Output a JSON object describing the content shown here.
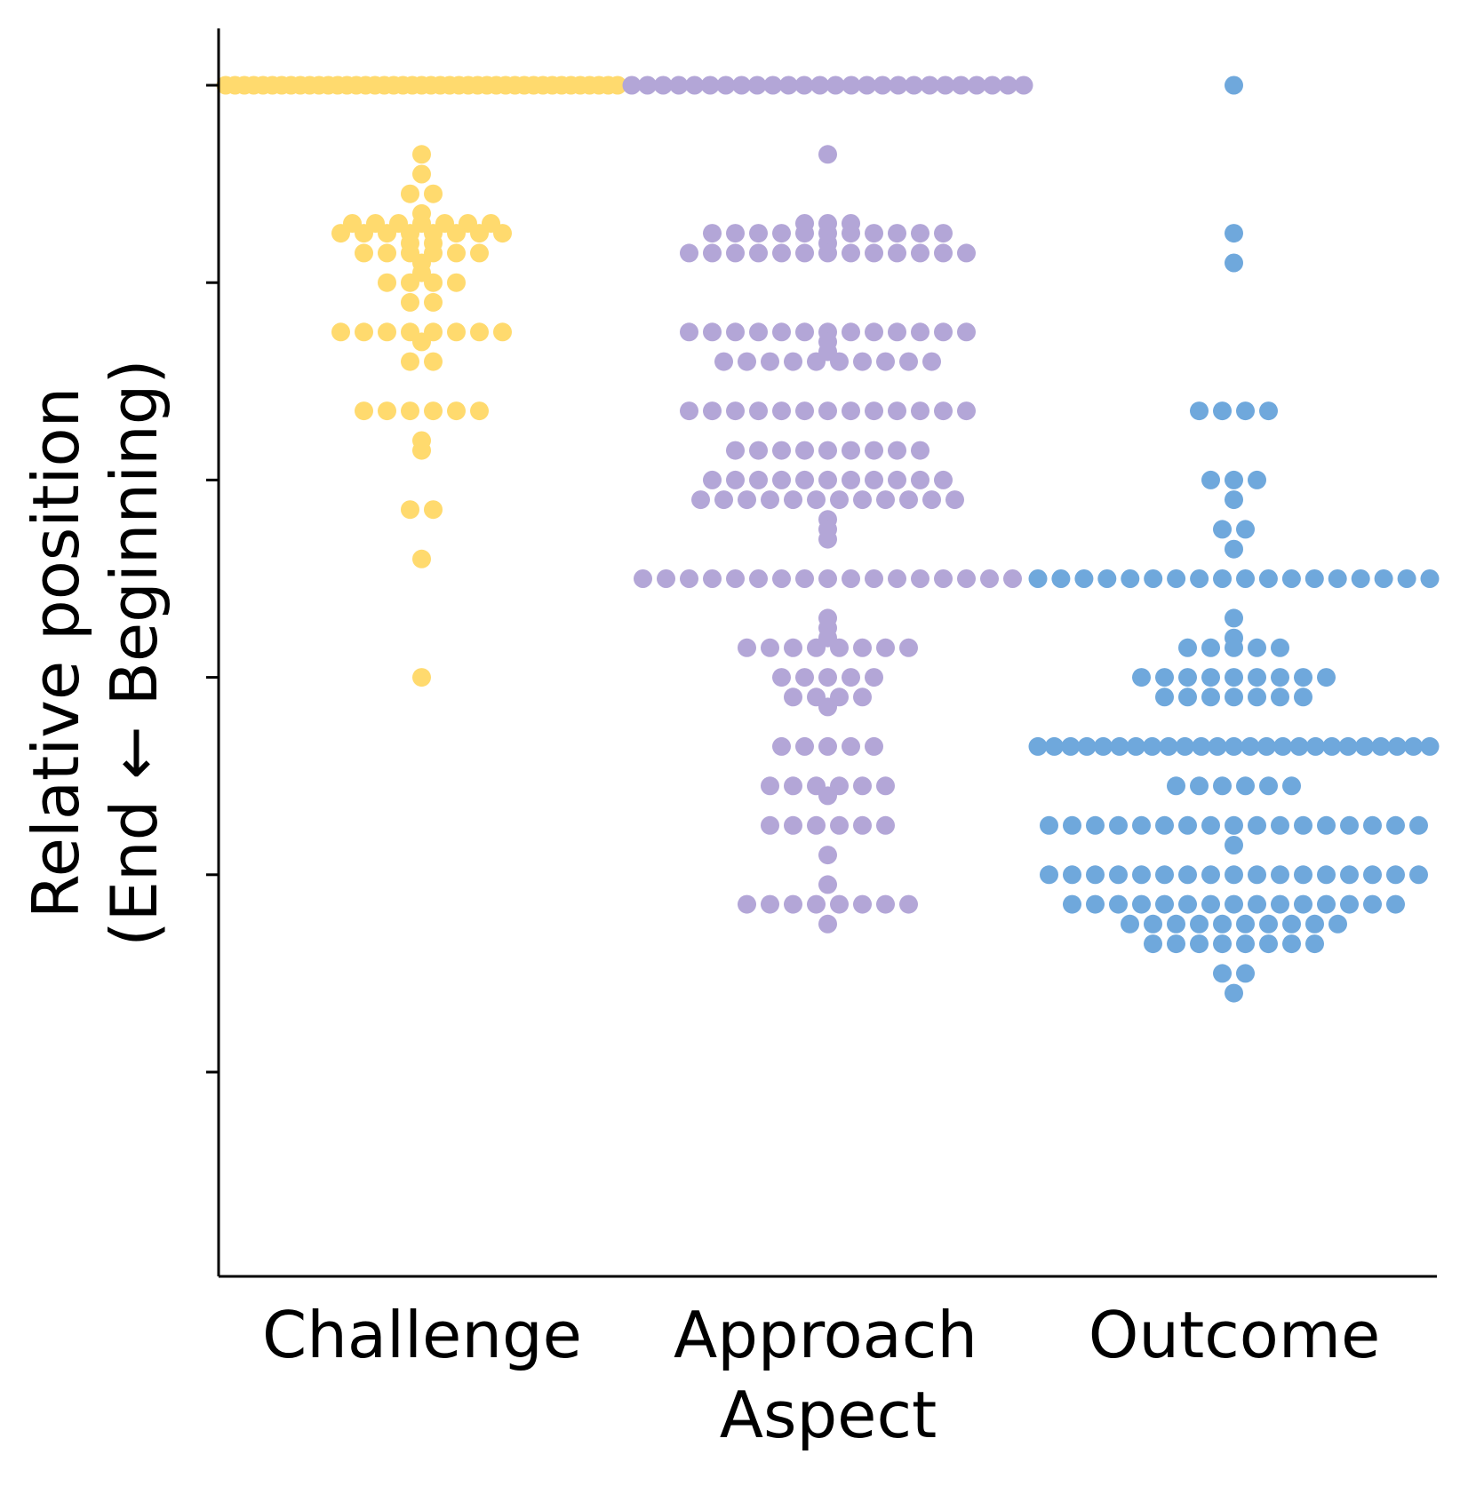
{
  "chart_data": {
    "type": "scatter",
    "subtype": "swarm",
    "xlabel": "Aspect",
    "ylabel_line1": "Relative position",
    "ylabel_line2": "(End ← Beginning)",
    "categories": [
      "Challenge",
      "Approach",
      "Outcome"
    ],
    "yticks": [
      0.0,
      0.2,
      0.4,
      0.6,
      0.8,
      1.0
    ],
    "ytick_labels_shown": false,
    "ylim": [
      -0.05,
      1.05
    ],
    "grid": false,
    "series": [
      {
        "name": "Challenge",
        "color": "#FFDA6E",
        "values": [
          1,
          1,
          1,
          1,
          1,
          1,
          1,
          1,
          1,
          1,
          1,
          1,
          1,
          1,
          1,
          1,
          1,
          1,
          1,
          1,
          1,
          1,
          1,
          1,
          1,
          1,
          1,
          1,
          1,
          1,
          1,
          1,
          1,
          1,
          1,
          1,
          1,
          1,
          1,
          1,
          1,
          1,
          1,
          0.93,
          0.91,
          0.89,
          0.89,
          0.87,
          0.86,
          0.86,
          0.86,
          0.86,
          0.86,
          0.86,
          0.86,
          0.85,
          0.85,
          0.85,
          0.85,
          0.85,
          0.85,
          0.85,
          0.85,
          0.84,
          0.84,
          0.83,
          0.83,
          0.83,
          0.83,
          0.83,
          0.83,
          0.82,
          0.81,
          0.8,
          0.8,
          0.8,
          0.8,
          0.78,
          0.78,
          0.75,
          0.75,
          0.75,
          0.75,
          0.75,
          0.75,
          0.75,
          0.75,
          0.74,
          0.72,
          0.72,
          0.67,
          0.67,
          0.67,
          0.67,
          0.67,
          0.67,
          0.64,
          0.63,
          0.57,
          0.57,
          0.52,
          0.4
        ]
      },
      {
        "name": "Approach",
        "color": "#B3A6D7",
        "values": [
          1,
          1,
          1,
          1,
          1,
          1,
          1,
          1,
          1,
          1,
          1,
          1,
          1,
          1,
          1,
          1,
          1,
          1,
          1,
          1,
          1,
          1,
          1,
          1,
          1,
          1,
          0.93,
          0.86,
          0.86,
          0.86,
          0.85,
          0.85,
          0.85,
          0.85,
          0.85,
          0.85,
          0.85,
          0.85,
          0.85,
          0.85,
          0.85,
          0.84,
          0.83,
          0.83,
          0.83,
          0.83,
          0.83,
          0.83,
          0.83,
          0.83,
          0.83,
          0.83,
          0.83,
          0.83,
          0.83,
          0.75,
          0.75,
          0.75,
          0.75,
          0.75,
          0.75,
          0.75,
          0.75,
          0.75,
          0.75,
          0.75,
          0.75,
          0.75,
          0.74,
          0.73,
          0.72,
          0.72,
          0.72,
          0.72,
          0.72,
          0.72,
          0.72,
          0.72,
          0.72,
          0.72,
          0.67,
          0.67,
          0.67,
          0.67,
          0.67,
          0.67,
          0.67,
          0.67,
          0.67,
          0.67,
          0.67,
          0.67,
          0.67,
          0.63,
          0.63,
          0.63,
          0.63,
          0.63,
          0.63,
          0.63,
          0.63,
          0.63,
          0.6,
          0.6,
          0.6,
          0.6,
          0.6,
          0.6,
          0.6,
          0.6,
          0.6,
          0.6,
          0.6,
          0.58,
          0.58,
          0.58,
          0.58,
          0.58,
          0.58,
          0.58,
          0.58,
          0.58,
          0.58,
          0.58,
          0.58,
          0.56,
          0.55,
          0.54,
          0.5,
          0.5,
          0.5,
          0.5,
          0.5,
          0.5,
          0.5,
          0.5,
          0.5,
          0.5,
          0.5,
          0.5,
          0.5,
          0.5,
          0.5,
          0.5,
          0.5,
          0.46,
          0.45,
          0.44,
          0.43,
          0.43,
          0.43,
          0.43,
          0.43,
          0.43,
          0.43,
          0.43,
          0.4,
          0.4,
          0.4,
          0.4,
          0.4,
          0.38,
          0.38,
          0.38,
          0.38,
          0.37,
          0.33,
          0.33,
          0.33,
          0.33,
          0.33,
          0.29,
          0.29,
          0.29,
          0.29,
          0.29,
          0.28,
          0.29,
          0.25,
          0.25,
          0.25,
          0.25,
          0.25,
          0.25,
          0.22,
          0.19,
          0.17,
          0.17,
          0.17,
          0.17,
          0.17,
          0.17,
          0.17,
          0.17,
          0.15
        ]
      },
      {
        "name": "Outcome",
        "color": "#6FA8DC",
        "values": [
          1,
          0.85,
          0.82,
          0.67,
          0.67,
          0.67,
          0.67,
          0.6,
          0.6,
          0.6,
          0.58,
          0.55,
          0.55,
          0.53,
          0.5,
          0.5,
          0.5,
          0.5,
          0.5,
          0.5,
          0.5,
          0.5,
          0.5,
          0.5,
          0.5,
          0.5,
          0.5,
          0.5,
          0.5,
          0.5,
          0.5,
          0.5,
          0.46,
          0.44,
          0.43,
          0.43,
          0.43,
          0.43,
          0.43,
          0.4,
          0.4,
          0.4,
          0.4,
          0.4,
          0.4,
          0.4,
          0.4,
          0.4,
          0.38,
          0.38,
          0.38,
          0.38,
          0.38,
          0.38,
          0.38,
          0.33,
          0.33,
          0.33,
          0.33,
          0.33,
          0.33,
          0.33,
          0.33,
          0.33,
          0.33,
          0.33,
          0.33,
          0.33,
          0.33,
          0.33,
          0.33,
          0.33,
          0.33,
          0.33,
          0.33,
          0.33,
          0.33,
          0.33,
          0.33,
          0.33,
          0.29,
          0.29,
          0.29,
          0.29,
          0.29,
          0.29,
          0.25,
          0.25,
          0.25,
          0.25,
          0.25,
          0.25,
          0.25,
          0.25,
          0.25,
          0.25,
          0.25,
          0.25,
          0.25,
          0.25,
          0.25,
          0.25,
          0.25,
          0.23,
          0.2,
          0.2,
          0.2,
          0.2,
          0.2,
          0.2,
          0.2,
          0.2,
          0.2,
          0.2,
          0.2,
          0.2,
          0.2,
          0.2,
          0.2,
          0.2,
          0.2,
          0.17,
          0.17,
          0.17,
          0.17,
          0.17,
          0.17,
          0.17,
          0.17,
          0.17,
          0.17,
          0.17,
          0.17,
          0.17,
          0.17,
          0.17,
          0.15,
          0.15,
          0.15,
          0.15,
          0.15,
          0.15,
          0.15,
          0.15,
          0.15,
          0.15,
          0.13,
          0.13,
          0.13,
          0.13,
          0.13,
          0.13,
          0.13,
          0.13,
          0.1,
          0.1,
          0.08
        ]
      }
    ]
  }
}
